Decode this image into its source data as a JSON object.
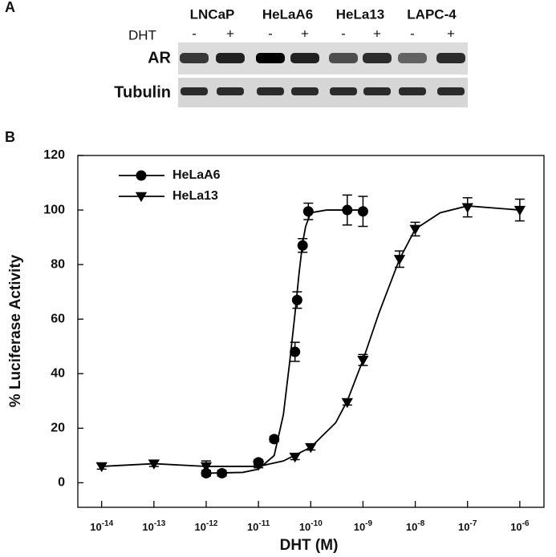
{
  "panel_a": {
    "label": "A",
    "cell_lines": [
      "LNCaP",
      "HeLaA6",
      "HeLa13",
      "LAPC-4"
    ],
    "treatment": "DHT",
    "signs": [
      "-",
      "+",
      "-",
      "+",
      "-",
      "+",
      "-",
      "+"
    ],
    "rows": [
      "AR",
      "Tubulin"
    ]
  },
  "chart_data": {
    "type": "scatter",
    "panel_label": "B",
    "xlabel": "DHT (M)",
    "ylabel": "% Luciferase Activity",
    "log_x": true,
    "xlim": [
      3.5e-15,
      2.9e-06
    ],
    "xticks": [
      {
        "value": 1e-14,
        "label": "10-14"
      },
      {
        "value": 1e-13,
        "label": "10-13"
      },
      {
        "value": 1e-12,
        "label": "10-12"
      },
      {
        "value": 1e-11,
        "label": "10-11"
      },
      {
        "value": 1e-10,
        "label": "10-10"
      },
      {
        "value": 1e-09,
        "label": "10-9"
      },
      {
        "value": 1e-08,
        "label": "10-8"
      },
      {
        "value": 1e-07,
        "label": "10-7"
      },
      {
        "value": 1e-06,
        "label": "10-6"
      }
    ],
    "ylim": [
      -9,
      120
    ],
    "yticks": [
      0,
      20,
      40,
      60,
      80,
      100,
      120
    ],
    "legend": "top-left",
    "color": "#000000",
    "series": [
      {
        "name": "HeLaA6",
        "marker": "circle",
        "x": [
          1e-12,
          2e-12,
          1e-11,
          2e-11,
          5e-11,
          5.5e-11,
          7e-11,
          9e-11,
          5e-10,
          1e-09
        ],
        "values": [
          3.5,
          3.5,
          7.5,
          16,
          48,
          67,
          87,
          99.5,
          100,
          99.5
        ],
        "errors": [
          1,
          1,
          1,
          1,
          3.5,
          3,
          2.5,
          3,
          5.5,
          5.5
        ],
        "curve_x": [
          1e-12,
          5e-12,
          1e-11,
          2e-11,
          3e-11,
          4e-11,
          5e-11,
          6e-11,
          7e-11,
          8e-11,
          1e-10,
          2e-10,
          5e-10,
          1e-09
        ],
        "curve_y": [
          3.5,
          3.8,
          5,
          10,
          25,
          45,
          62,
          77,
          88,
          94,
          99,
          100,
          100,
          100
        ]
      },
      {
        "name": "HeLa13",
        "marker": "triangle-down",
        "x": [
          1e-14,
          1e-13,
          1e-12,
          1e-11,
          5e-11,
          1e-10,
          5e-10,
          1e-09,
          5e-09,
          1e-08,
          1e-07,
          1e-06
        ],
        "values": [
          6,
          7,
          6,
          6.5,
          9.5,
          13,
          29.5,
          45,
          82,
          93,
          101,
          100
        ],
        "errors": [
          1,
          1,
          2,
          1,
          1,
          1,
          1,
          2,
          3,
          2.5,
          3.5,
          4
        ],
        "curve_x": [
          1e-14,
          1e-13,
          1e-12,
          1e-11,
          3e-11,
          1e-10,
          3e-10,
          5e-10,
          1e-09,
          2e-09,
          5e-09,
          1e-08,
          3e-08,
          1e-07,
          1e-06
        ],
        "curve_y": [
          6,
          7,
          6,
          6,
          8,
          13,
          22,
          30,
          45,
          62,
          82,
          93,
          99,
          101.5,
          100
        ]
      }
    ]
  }
}
